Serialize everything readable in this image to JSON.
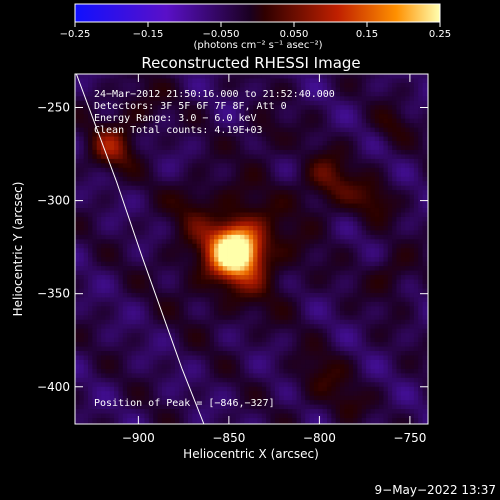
{
  "chart_data": {
    "type": "heatmap",
    "title": "Reconstructed RHESSI Image",
    "xlabel": "Heliocentric X (arcsec)",
    "ylabel": "Heliocentric Y (arcsec)",
    "xlim": [
      -935,
      -740
    ],
    "ylim": [
      -420,
      -232
    ],
    "x_ticks": [
      -900,
      -850,
      -800,
      -750
    ],
    "y_ticks": [
      -250,
      -300,
      -350,
      -400
    ],
    "x_tick_labels": [
      "−900",
      "−850",
      "−800",
      "−750"
    ],
    "y_tick_labels": [
      "−250",
      "−300",
      "−350",
      "−400"
    ],
    "colorbar": {
      "range": [
        -0.25,
        0.25
      ],
      "ticks": [
        -0.25,
        -0.15,
        -0.05,
        0.05,
        0.15,
        0.25
      ],
      "tick_labels": [
        "−0.25",
        "−0.15",
        "−0.050",
        "0.050",
        "0.15",
        "0.25"
      ],
      "unit_label": "(photons cm⁻² s⁻¹ asec⁻²)",
      "colors": [
        "#1010ff",
        "#5a10c8",
        "#2a0030",
        "#7a1a00",
        "#e04000",
        "#ffff80"
      ]
    },
    "annotations": [
      "24−Mar−2012 21:50:16.000 to 21:52:40.000",
      "Detectors: 3F 5F 6F 7F 8F, Att 0",
      "Energy Range: 3.0 − 6.0 keV",
      "Clean    Total counts: 4.19E+03"
    ],
    "peak_label": "Position of Peak = [−846,−327]",
    "peak": {
      "x": -846,
      "y": -327,
      "value": 0.25
    },
    "limb": [
      [
        -935,
        -230
      ],
      [
        -912,
        -290
      ],
      [
        -898,
        -330
      ],
      [
        -887,
        -360
      ],
      [
        -876,
        -390
      ],
      [
        -863,
        -422
      ]
    ]
  },
  "footer": {
    "timestamp": "9−May−2022 13:37"
  }
}
